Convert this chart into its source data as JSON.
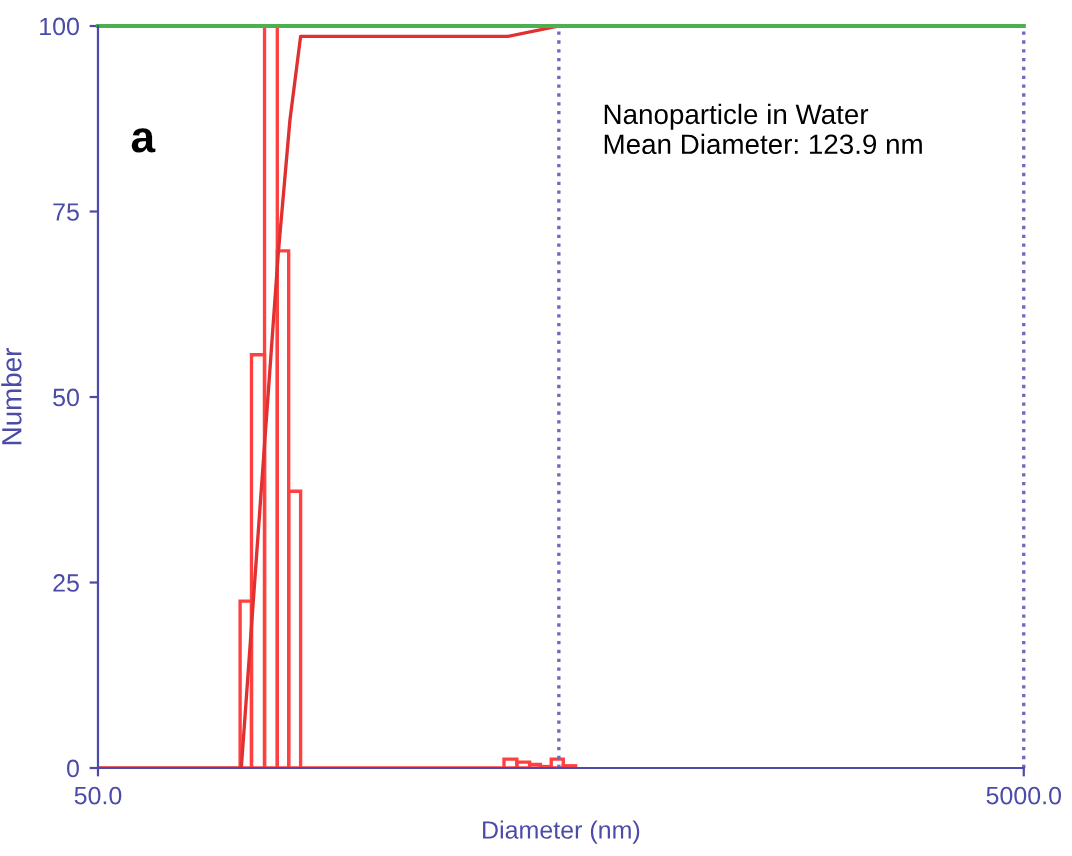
{
  "chart_data": {
    "type": "histogram",
    "xlabel": "Diameter (nm)",
    "ylabel": "Number",
    "annotations": [
      "a",
      "Nanoparticle in Water\nMean Diameter: 123.9 nm"
    ],
    "bins": [
      101.4,
      107.3,
      114.5,
      122,
      129.1,
      137,
      376.8,
      401.7,
      428,
      451.6,
      476.6,
      506,
      538
    ],
    "values": [
      22.5,
      55.7,
      100,
      69.7,
      37.3,
      0,
      1.2,
      0.8,
      0.5,
      0.2,
      1.2,
      0.3
    ],
    "color": "#ff4040",
    "series": [
      {
        "type": "line",
        "color": "#e03030",
        "x": [
          50,
          102,
          122.6,
          129.9,
          137,
          384,
          495
        ],
        "values": [
          0,
          0,
          69.4,
          87.3,
          98.6,
          98.6,
          100
        ]
      }
    ],
    "ref_lines": [
      {
        "axis": "y",
        "value": 100,
        "color": "#4caf50",
        "line_style": "solid"
      },
      {
        "axis": "x",
        "value": 495,
        "color": "#6a6ac0",
        "line_style": "dotted"
      },
      {
        "axis": "x",
        "value": 5000,
        "color": "#6a6ac0",
        "line_style": "dotted"
      }
    ],
    "log": "x",
    "xlim": [
      50,
      5000
    ],
    "xticks": [
      {
        "value": 50,
        "label": "50.0"
      },
      {
        "value": 5000,
        "label": "5000.0"
      }
    ],
    "ylim": [
      0,
      100
    ],
    "yticks": [
      0,
      25,
      50,
      75,
      100
    ],
    "grid": false,
    "legend": false
  }
}
